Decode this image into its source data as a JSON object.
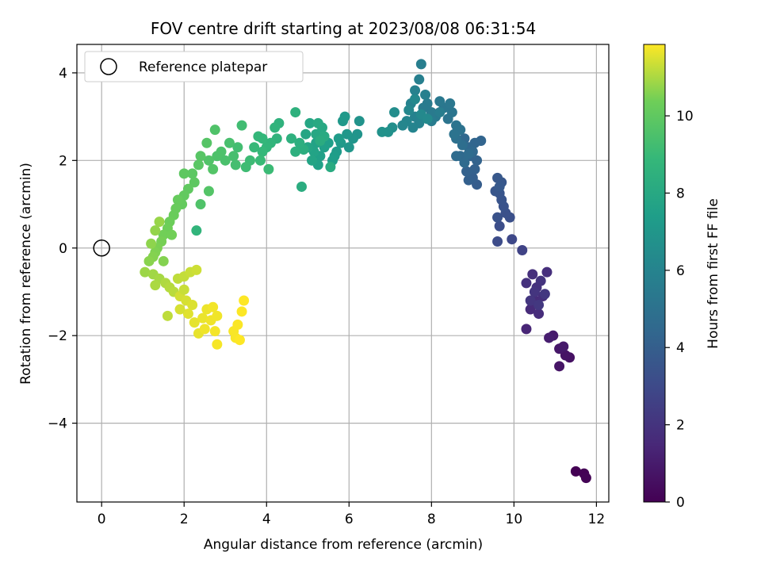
{
  "chart_data": {
    "type": "scatter",
    "title": "FOV centre drift starting at 2023/08/08 06:31:54",
    "xlabel": "Angular distance from reference (arcmin)",
    "ylabel": "Rotation from reference (arcmin)",
    "xlim": [
      -0.6,
      12.3
    ],
    "ylim": [
      -5.8,
      4.65
    ],
    "xticks": [
      0,
      2,
      4,
      6,
      8,
      10,
      12
    ],
    "yticks": [
      -4,
      -2,
      0,
      2,
      4
    ],
    "grid": true,
    "colormap": "viridis",
    "colorbar": {
      "label": "Hours from first FF file",
      "range": [
        0,
        11.85
      ],
      "ticks": [
        0,
        2,
        4,
        6,
        8,
        10
      ]
    },
    "legend": {
      "placement": "top-left",
      "entries": [
        {
          "label": "Reference platepar",
          "marker": "open-circle"
        }
      ]
    },
    "reference_point": {
      "x": 0,
      "y": 0
    },
    "points": [
      [
        11.5,
        -5.1,
        0.0
      ],
      [
        11.7,
        -5.15,
        0.05
      ],
      [
        11.75,
        -5.25,
        0.1
      ],
      [
        11.35,
        -2.5,
        0.6
      ],
      [
        11.25,
        -2.45,
        0.7
      ],
      [
        11.1,
        -2.7,
        0.75
      ],
      [
        11.1,
        -2.3,
        0.85
      ],
      [
        11.2,
        -2.25,
        0.9
      ],
      [
        10.95,
        -2.0,
        1.0
      ],
      [
        10.85,
        -2.05,
        1.1
      ],
      [
        10.3,
        -1.85,
        1.4
      ],
      [
        10.4,
        -1.4,
        1.6
      ],
      [
        10.5,
        -1.2,
        1.65
      ],
      [
        10.6,
        -1.5,
        1.7
      ],
      [
        10.7,
        -1.1,
        1.75
      ],
      [
        10.8,
        -0.55,
        1.8
      ],
      [
        10.45,
        -0.6,
        1.85
      ],
      [
        10.3,
        -0.8,
        1.9
      ],
      [
        10.55,
        -0.9,
        1.95
      ],
      [
        10.65,
        -0.75,
        2.0
      ],
      [
        10.5,
        -1.0,
        2.05
      ],
      [
        10.4,
        -1.2,
        2.1
      ],
      [
        10.75,
        -1.05,
        2.15
      ],
      [
        10.6,
        -1.3,
        2.2
      ],
      [
        10.2,
        -0.05,
        2.7
      ],
      [
        9.95,
        0.2,
        2.9
      ],
      [
        9.6,
        0.15,
        3.1
      ],
      [
        9.65,
        0.5,
        3.2
      ],
      [
        9.9,
        0.7,
        3.3
      ],
      [
        9.8,
        0.8,
        3.35
      ],
      [
        9.6,
        0.7,
        3.4
      ],
      [
        9.75,
        0.95,
        3.45
      ],
      [
        9.7,
        1.1,
        3.5
      ],
      [
        9.65,
        1.25,
        3.55
      ],
      [
        9.55,
        1.3,
        3.6
      ],
      [
        9.7,
        1.5,
        3.65
      ],
      [
        9.6,
        1.6,
        3.7
      ],
      [
        9.65,
        1.4,
        3.75
      ],
      [
        9.1,
        1.45,
        3.9
      ],
      [
        9.0,
        1.6,
        4.0
      ],
      [
        8.9,
        1.55,
        4.05
      ],
      [
        9.05,
        1.8,
        4.1
      ],
      [
        8.85,
        1.75,
        4.15
      ],
      [
        9.1,
        2.0,
        4.2
      ],
      [
        8.95,
        2.1,
        4.25
      ],
      [
        9.2,
        2.45,
        4.3
      ],
      [
        9.05,
        2.4,
        4.35
      ],
      [
        8.9,
        2.3,
        4.4
      ],
      [
        8.8,
        2.5,
        4.45
      ],
      [
        9.0,
        2.2,
        4.5
      ],
      [
        8.7,
        2.1,
        4.55
      ],
      [
        8.8,
        1.95,
        4.6
      ],
      [
        8.6,
        2.1,
        4.65
      ],
      [
        8.9,
        2.15,
        4.7
      ],
      [
        8.75,
        2.35,
        4.8
      ],
      [
        8.6,
        2.5,
        4.9
      ],
      [
        8.7,
        2.7,
        5.0
      ],
      [
        8.55,
        2.6,
        5.05
      ],
      [
        8.6,
        2.8,
        5.1
      ],
      [
        8.4,
        2.95,
        5.15
      ],
      [
        8.5,
        3.1,
        5.2
      ],
      [
        8.3,
        3.2,
        5.25
      ],
      [
        8.45,
        3.3,
        5.3
      ],
      [
        8.2,
        3.35,
        5.35
      ],
      [
        8.1,
        3.0,
        5.4
      ],
      [
        8.0,
        3.1,
        5.45
      ],
      [
        7.9,
        3.3,
        5.5
      ],
      [
        7.8,
        3.2,
        5.55
      ],
      [
        8.0,
        2.9,
        5.6
      ],
      [
        8.2,
        3.1,
        5.65
      ],
      [
        7.75,
        4.2,
        5.7
      ],
      [
        7.7,
        3.85,
        5.75
      ],
      [
        7.85,
        3.5,
        5.8
      ],
      [
        7.6,
        3.6,
        5.85
      ],
      [
        7.5,
        3.3,
        5.9
      ],
      [
        7.6,
        3.0,
        5.95
      ],
      [
        7.7,
        2.85,
        6.0
      ],
      [
        7.55,
        2.75,
        6.05
      ],
      [
        7.4,
        2.9,
        6.1
      ],
      [
        7.3,
        2.8,
        6.15
      ],
      [
        7.45,
        3.15,
        6.2
      ],
      [
        7.6,
        3.4,
        6.25
      ],
      [
        7.75,
        3.05,
        6.3
      ],
      [
        7.9,
        2.95,
        6.35
      ],
      [
        7.1,
        3.1,
        6.5
      ],
      [
        7.05,
        2.75,
        6.6
      ],
      [
        6.95,
        2.65,
        6.7
      ],
      [
        6.8,
        2.65,
        6.75
      ],
      [
        6.25,
        2.9,
        6.85
      ],
      [
        6.2,
        2.6,
        6.9
      ],
      [
        6.1,
        2.5,
        6.95
      ],
      [
        6.0,
        2.3,
        7.0
      ],
      [
        5.95,
        2.6,
        7.05
      ],
      [
        5.85,
        2.9,
        7.1
      ],
      [
        5.9,
        3.0,
        7.15
      ],
      [
        5.8,
        2.4,
        7.2
      ],
      [
        5.7,
        2.2,
        7.25
      ],
      [
        5.75,
        2.5,
        7.3
      ],
      [
        5.65,
        2.1,
        7.35
      ],
      [
        5.6,
        2.0,
        7.4
      ],
      [
        5.5,
        2.4,
        7.45
      ],
      [
        5.4,
        2.3,
        7.5
      ],
      [
        5.3,
        2.1,
        7.55
      ],
      [
        5.25,
        1.9,
        7.6
      ],
      [
        5.2,
        2.4,
        7.65
      ],
      [
        5.15,
        2.2,
        7.7
      ],
      [
        5.1,
        2.0,
        7.75
      ],
      [
        5.0,
        2.3,
        7.8
      ],
      [
        4.95,
        2.6,
        7.85
      ],
      [
        5.05,
        2.85,
        7.9
      ],
      [
        5.2,
        2.6,
        7.95
      ],
      [
        5.35,
        2.75,
        8.0
      ],
      [
        5.25,
        2.85,
        8.05
      ],
      [
        5.4,
        2.55,
        8.1
      ],
      [
        5.55,
        1.85,
        8.15
      ],
      [
        5.3,
        2.45,
        8.2
      ],
      [
        4.85,
        1.4,
        8.25
      ],
      [
        4.9,
        2.25,
        8.3
      ],
      [
        4.8,
        2.4,
        8.35
      ],
      [
        4.7,
        2.2,
        8.4
      ],
      [
        4.6,
        2.5,
        8.45
      ],
      [
        4.7,
        3.1,
        8.5
      ],
      [
        4.3,
        2.85,
        8.55
      ],
      [
        4.25,
        2.5,
        8.6
      ],
      [
        4.2,
        2.75,
        8.65
      ],
      [
        4.1,
        2.4,
        8.7
      ],
      [
        4.0,
        2.3,
        8.75
      ],
      [
        3.9,
        2.5,
        8.8
      ],
      [
        3.8,
        2.55,
        8.85
      ],
      [
        3.9,
        2.2,
        8.9
      ],
      [
        3.7,
        2.3,
        8.95
      ],
      [
        3.85,
        2.0,
        9.0
      ],
      [
        4.05,
        1.8,
        9.05
      ],
      [
        3.6,
        2.0,
        9.1
      ],
      [
        3.5,
        1.85,
        9.15
      ],
      [
        3.4,
        2.8,
        9.2
      ],
      [
        3.3,
        2.3,
        9.25
      ],
      [
        3.25,
        1.9,
        9.3
      ],
      [
        3.2,
        2.1,
        9.35
      ],
      [
        3.1,
        2.4,
        9.4
      ],
      [
        3.0,
        2.0,
        9.45
      ],
      [
        2.9,
        2.2,
        9.5
      ],
      [
        2.8,
        2.1,
        9.55
      ],
      [
        2.75,
        2.7,
        9.6
      ],
      [
        2.6,
        2.0,
        9.65
      ],
      [
        2.7,
        1.8,
        9.7
      ],
      [
        2.55,
        2.4,
        9.75
      ],
      [
        2.4,
        2.1,
        9.8
      ],
      [
        2.35,
        1.9,
        9.85
      ],
      [
        2.2,
        1.7,
        9.9
      ],
      [
        2.25,
        1.5,
        9.95
      ],
      [
        2.1,
        1.35,
        10.0
      ],
      [
        2.0,
        1.2,
        10.05
      ],
      [
        1.95,
        1.0,
        10.1
      ],
      [
        1.85,
        1.1,
        10.15
      ],
      [
        1.8,
        0.9,
        10.2
      ],
      [
        1.75,
        0.75,
        10.25
      ],
      [
        1.65,
        0.6,
        10.3
      ],
      [
        1.6,
        0.45,
        10.35
      ],
      [
        1.5,
        0.3,
        10.4
      ],
      [
        1.45,
        0.15,
        10.45
      ],
      [
        1.35,
        0.0,
        10.5
      ],
      [
        1.3,
        -0.1,
        10.55
      ],
      [
        1.25,
        -0.2,
        10.6
      ],
      [
        1.15,
        -0.3,
        10.65
      ],
      [
        1.2,
        0.1,
        10.7
      ],
      [
        1.3,
        0.4,
        10.75
      ],
      [
        1.4,
        0.6,
        10.8
      ],
      [
        2.3,
        0.4,
        8.7
      ],
      [
        2.4,
        1.0,
        9.6
      ],
      [
        2.6,
        1.3,
        9.7
      ],
      [
        2.0,
        1.7,
        9.95
      ],
      [
        1.7,
        0.3,
        10.4
      ],
      [
        1.5,
        -0.3,
        10.6
      ],
      [
        1.05,
        -0.55,
        10.85
      ],
      [
        1.25,
        -0.6,
        10.9
      ],
      [
        1.4,
        -0.7,
        10.95
      ],
      [
        1.3,
        -0.85,
        11.0
      ],
      [
        1.55,
        -0.8,
        11.05
      ],
      [
        1.65,
        -0.9,
        11.1
      ],
      [
        1.75,
        -1.0,
        11.15
      ],
      [
        1.85,
        -0.7,
        11.2
      ],
      [
        2.0,
        -0.65,
        11.25
      ],
      [
        2.15,
        -0.55,
        11.3
      ],
      [
        2.3,
        -0.5,
        11.35
      ],
      [
        1.9,
        -1.1,
        11.4
      ],
      [
        2.05,
        -1.2,
        11.45
      ],
      [
        2.2,
        -1.3,
        11.5
      ],
      [
        2.1,
        -1.5,
        11.55
      ],
      [
        2.25,
        -1.7,
        11.6
      ],
      [
        2.35,
        -1.95,
        11.62
      ],
      [
        2.45,
        -1.6,
        11.65
      ],
      [
        2.55,
        -1.4,
        11.67
      ],
      [
        2.65,
        -1.65,
        11.7
      ],
      [
        2.8,
        -1.55,
        11.72
      ],
      [
        2.7,
        -1.35,
        11.74
      ],
      [
        2.75,
        -1.9,
        11.76
      ],
      [
        2.8,
        -2.2,
        11.78
      ],
      [
        3.2,
        -1.9,
        11.8
      ],
      [
        3.3,
        -1.75,
        11.82
      ],
      [
        3.4,
        -1.45,
        11.84
      ],
      [
        3.45,
        -1.2,
        11.85
      ],
      [
        3.25,
        -2.05,
        11.8
      ],
      [
        3.35,
        -2.1,
        11.85
      ],
      [
        2.5,
        -1.85,
        11.7
      ],
      [
        1.9,
        -1.4,
        11.45
      ],
      [
        2.0,
        -0.95,
        11.3
      ],
      [
        1.6,
        -1.55,
        11.2
      ]
    ]
  }
}
